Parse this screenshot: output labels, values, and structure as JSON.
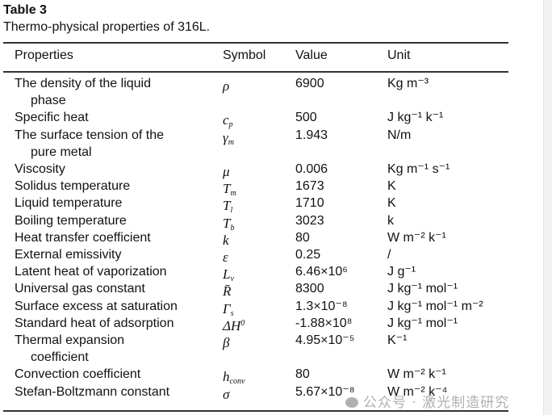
{
  "table": {
    "label": "Table 3",
    "caption": "Thermo-physical properties of 316L.",
    "headers": [
      "Properties",
      "Symbol",
      "Value",
      "Unit"
    ],
    "rows": [
      {
        "property": [
          "The density of the liquid",
          "phase"
        ],
        "symbol": {
          "main": "ρ",
          "sub": "",
          "sup": ""
        },
        "value": "6900",
        "unit": "Kg m⁻³"
      },
      {
        "property": [
          "Specific heat"
        ],
        "symbol": {
          "main": "c",
          "sub": "p",
          "sup": ""
        },
        "value": "500",
        "unit": "J kg⁻¹ k⁻¹"
      },
      {
        "property": [
          "The surface tension of the",
          "pure metal"
        ],
        "symbol": {
          "main": "γ",
          "sub": "m",
          "sup": ""
        },
        "value": "1.943",
        "unit": "N/m"
      },
      {
        "property": [
          "Viscosity"
        ],
        "symbol": {
          "main": "μ",
          "sub": "",
          "sup": ""
        },
        "value": "0.006",
        "unit": "Kg m⁻¹ s⁻¹"
      },
      {
        "property": [
          "Solidus temperature"
        ],
        "symbol": {
          "main": "T",
          "sub": "m",
          "sup": ""
        },
        "value": "1673",
        "unit": "K"
      },
      {
        "property": [
          "Liquid temperature"
        ],
        "symbol": {
          "main": "T",
          "sub": "l",
          "sup": ""
        },
        "value": "1710",
        "unit": "K"
      },
      {
        "property": [
          "Boiling temperature"
        ],
        "symbol": {
          "main": "T",
          "sub": "b",
          "sup": ""
        },
        "value": "3023",
        "unit": "k"
      },
      {
        "property": [
          "Heat transfer coefficient"
        ],
        "symbol": {
          "main": "k",
          "sub": "",
          "sup": ""
        },
        "value": "80",
        "unit": "W m⁻² k⁻¹"
      },
      {
        "property": [
          "External emissivity"
        ],
        "symbol": {
          "main": "ε",
          "sub": "",
          "sup": ""
        },
        "value": "0.25",
        "unit": "/"
      },
      {
        "property": [
          "Latent heat of vaporization"
        ],
        "symbol": {
          "main": "L",
          "sub": "v",
          "sup": ""
        },
        "value": "6.46×10⁶",
        "unit": "J g⁻¹"
      },
      {
        "property": [
          "Universal gas constant"
        ],
        "symbol": {
          "main": "R̄",
          "sub": "",
          "sup": ""
        },
        "value": "8300",
        "unit": "J kg⁻¹ mol⁻¹"
      },
      {
        "property": [
          "Surface excess at saturation"
        ],
        "symbol": {
          "main": "Γ",
          "sub": "s",
          "sup": ""
        },
        "value": "1.3×10⁻⁸",
        "unit": "J kg⁻¹ mol⁻¹ m⁻²"
      },
      {
        "property": [
          "Standard heat of adsorption"
        ],
        "symbol": {
          "main": "ΔH",
          "sub": "",
          "sup": "0"
        },
        "value": "-1.88×10⁸",
        "unit": "J kg⁻¹ mol⁻¹"
      },
      {
        "property": [
          "Thermal expansion",
          "coefficient"
        ],
        "symbol": {
          "main": "β",
          "sub": "",
          "sup": ""
        },
        "value": "4.95×10⁻⁵",
        "unit": "K⁻¹"
      },
      {
        "property": [
          "Convection coefficient"
        ],
        "symbol": {
          "main": "h",
          "sub": "conv",
          "sup": ""
        },
        "value": "80",
        "unit": "W m⁻² k⁻¹"
      },
      {
        "property": [
          "Stefan-Boltzmann constant"
        ],
        "symbol": {
          "main": "σ",
          "sub": "",
          "sup": ""
        },
        "value": "5.67×10⁻⁸",
        "unit": "W m⁻² k⁻⁴"
      }
    ]
  },
  "watermark": "公众号 · 激光制造研究"
}
